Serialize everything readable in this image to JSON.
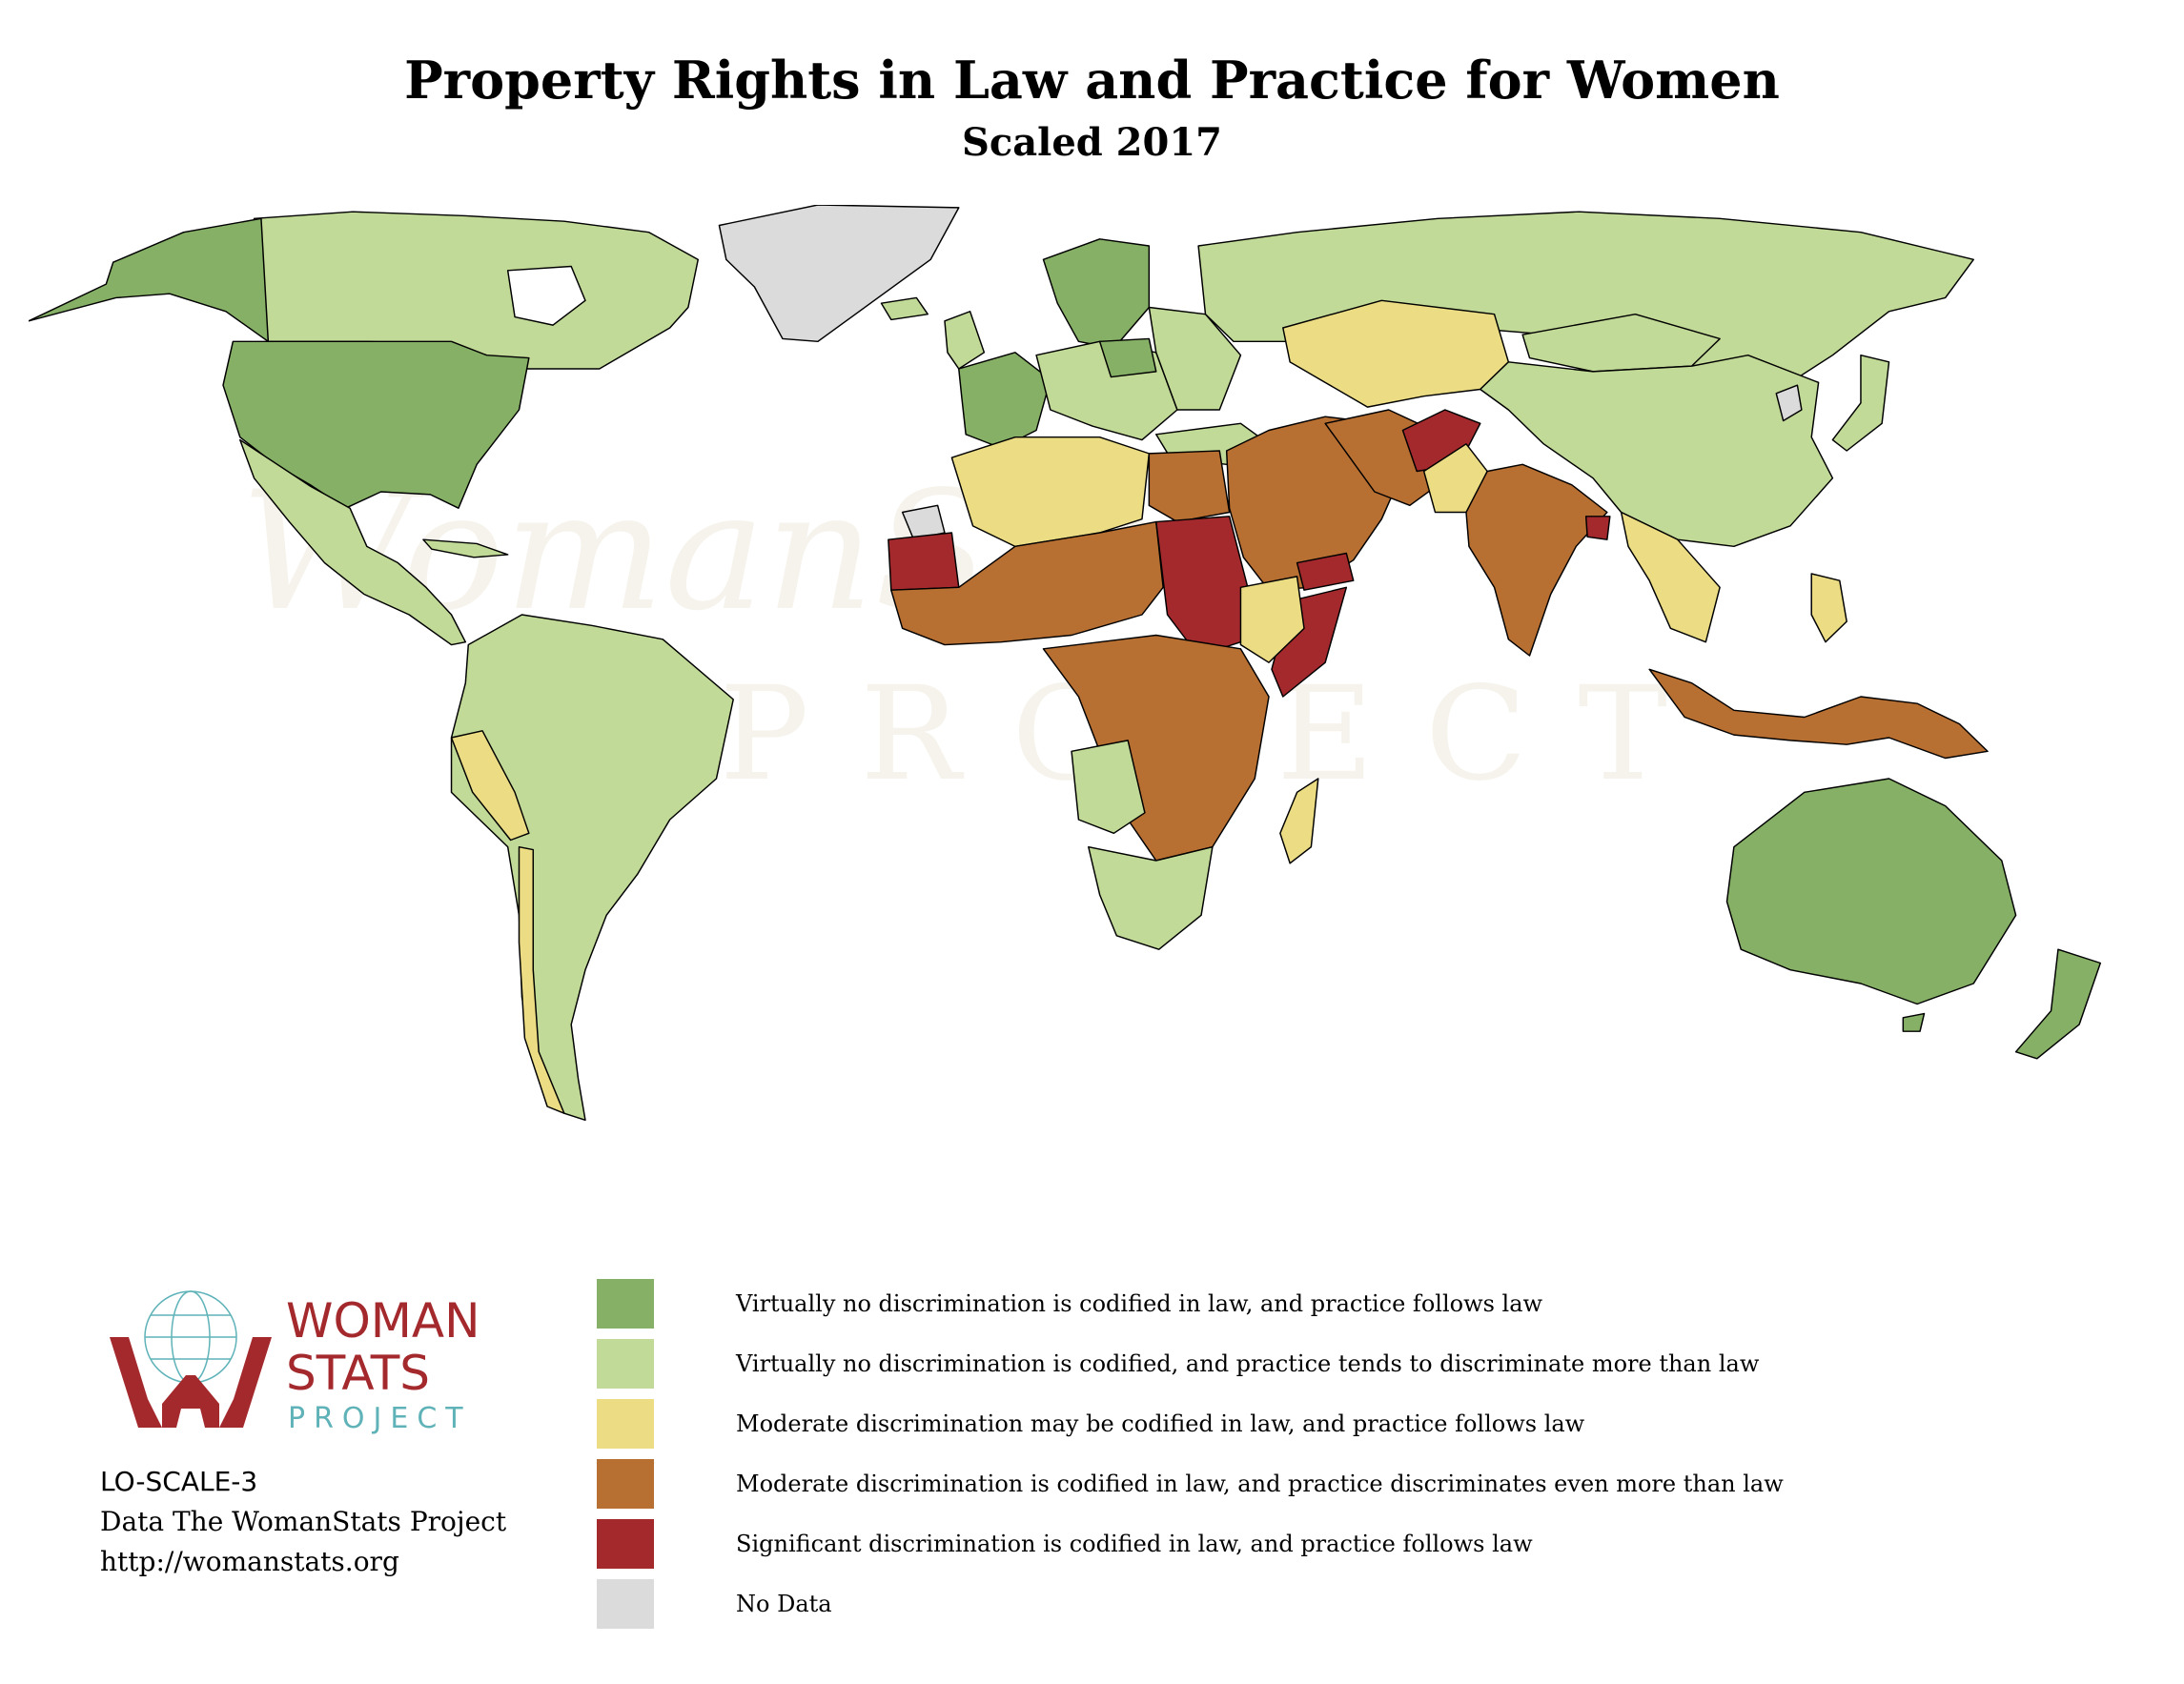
{
  "title": "Property Rights in Law and Practice for Women",
  "subtitle": "Scaled 2017",
  "watermark": {
    "line1": "WomanStats",
    "line2": "PROJECT"
  },
  "colors": {
    "cat1": "#86b066",
    "cat2": "#c2da97",
    "cat3": "#ecdc84",
    "cat4": "#b86f32",
    "cat5": "#a4292d",
    "nodata": "#dbdbdb",
    "brand_red": "#a4292d",
    "brand_teal": "#5fb3b8"
  },
  "legend": [
    {
      "color": "#86b066",
      "label": "Virtually no discrimination is codified in law, and practice follows law"
    },
    {
      "color": "#c2da97",
      "label": "Virtually no discrimination is codified, and practice tends to discriminate more than law"
    },
    {
      "color": "#ecdc84",
      "label": "Moderate discrimination may be codified in law, and practice follows law"
    },
    {
      "color": "#b86f32",
      "label": "Moderate discrimination is codified in law, and practice discriminates even more than law"
    },
    {
      "color": "#a4292d",
      "label": "Significant discrimination is codified in law, and practice follows law"
    },
    {
      "color": "#dbdbdb",
      "label": "No Data"
    }
  ],
  "logo": {
    "word1": "WOMAN",
    "word2": "STATS",
    "word3": "PROJECT"
  },
  "info": {
    "code": "LO-SCALE-3",
    "credit": "Data The WomanStats Project",
    "url": "http://womanstats.org"
  }
}
